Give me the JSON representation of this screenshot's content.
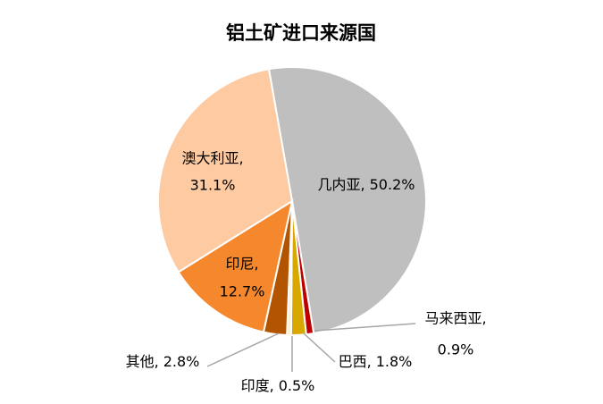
{
  "chart_data": {
    "type": "pie",
    "title": "铝土矿进口来源国",
    "categories": [
      "几内亚,",
      "马来西亚,",
      "巴西,",
      "印度,",
      "其他,",
      "印尼,",
      "澳大利亚,"
    ],
    "values": [
      50.2,
      0.9,
      1.8,
      0.5,
      2.8,
      12.7,
      31.1
    ],
    "value_labels": [
      "50.2%",
      "0.9%",
      "1.8%",
      "0.5%",
      "2.8%",
      "12.7%",
      "31.1%"
    ],
    "colors": [
      "#bfbfbf",
      "#c00000",
      "#d9a800",
      "#fff0c8",
      "#b35400",
      "#f5872c",
      "#fdcaa2"
    ]
  }
}
